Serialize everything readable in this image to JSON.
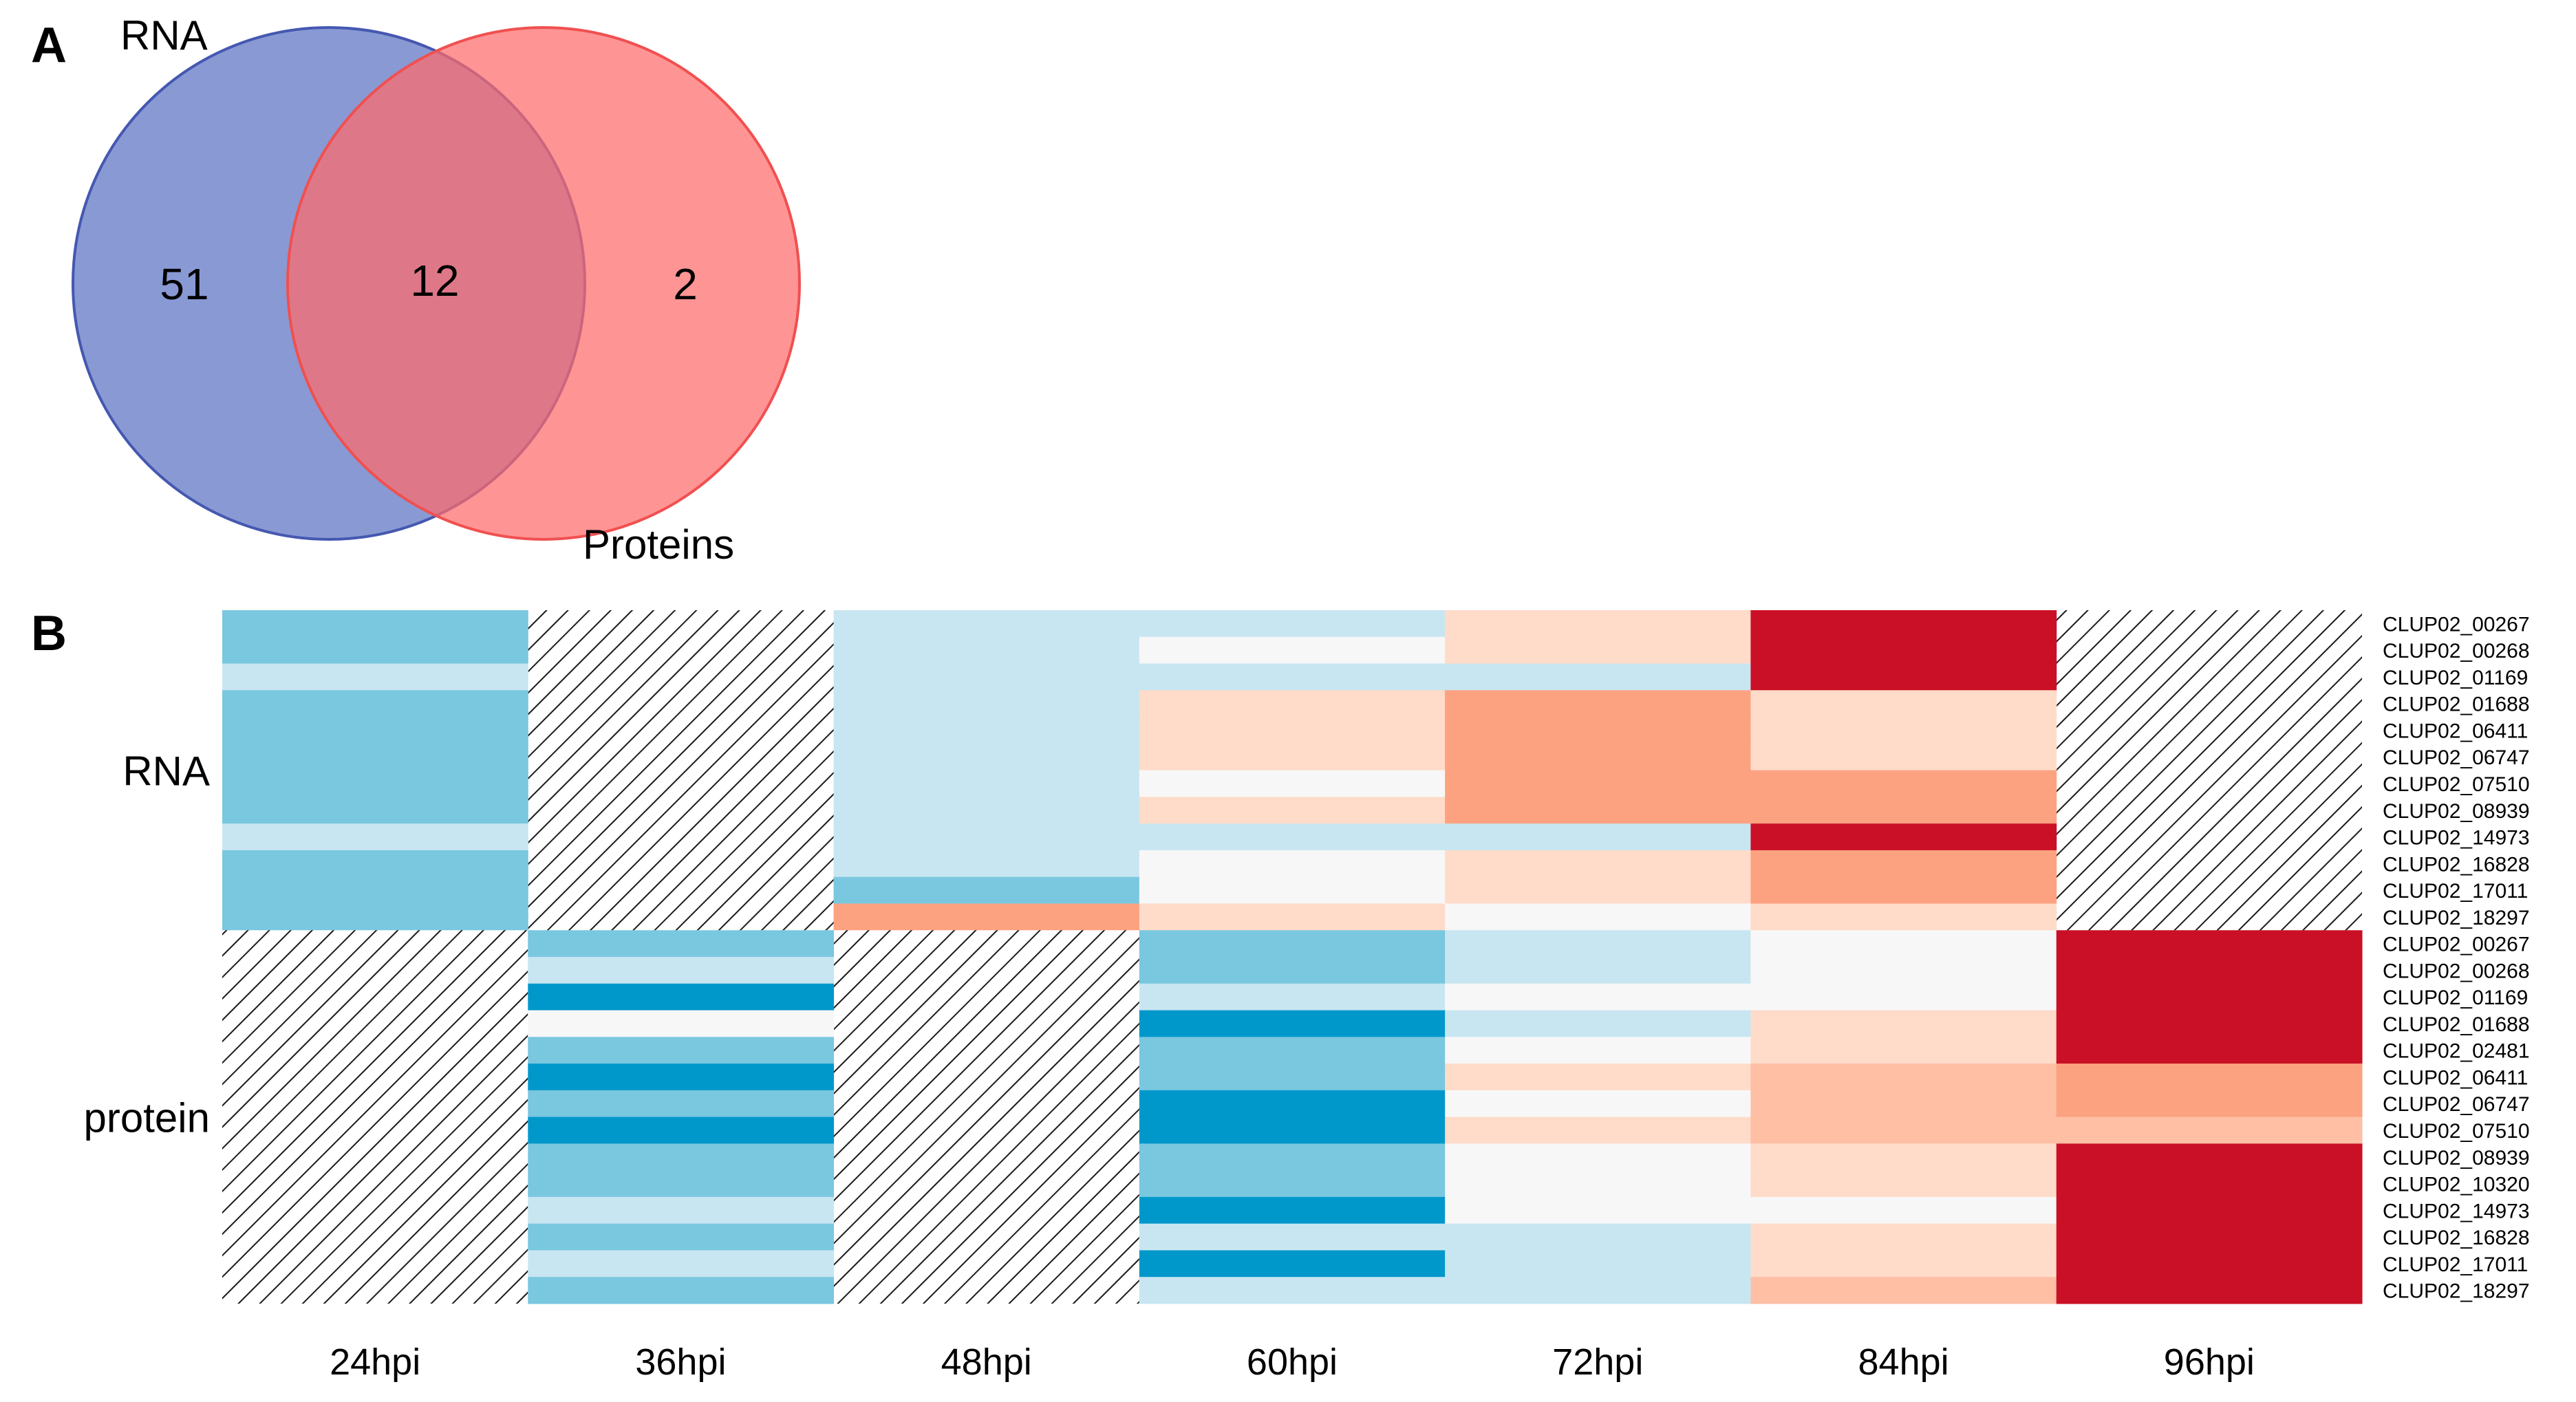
{
  "chart_data": [
    {
      "type": "venn",
      "panel_label": "A",
      "sets": [
        {
          "name": "RNA",
          "color": "#5b72c4"
        },
        {
          "name": "Proteins",
          "color": "#ff6b6b"
        }
      ],
      "regions": {
        "rna_only": "51",
        "both": "12",
        "proteins_only": "2"
      },
      "overlap_color": "#b04a6a"
    },
    {
      "type": "heatmap",
      "panel_label": "B",
      "columns": [
        "24hpi",
        "36hpi",
        "48hpi",
        "60hpi",
        "72hpi",
        "84hpi",
        "96hpi"
      ],
      "scale": {
        "min": -3,
        "max": 3,
        "missing": "NA (hatched)"
      },
      "groups": [
        {
          "name": "RNA",
          "rows": [
            "CLUP02_00267",
            "CLUP02_00268",
            "CLUP02_01169",
            "CLUP02_01688",
            "CLUP02_06411",
            "CLUP02_06747",
            "CLUP02_07510",
            "CLUP02_08939",
            "CLUP02_14973",
            "CLUP02_16828",
            "CLUP02_17011",
            "CLUP02_18297"
          ],
          "values": [
            [
              -2,
              null,
              -1,
              -1,
              1,
              3,
              null
            ],
            [
              -2,
              null,
              -1,
              0,
              1,
              3,
              null
            ],
            [
              -1,
              null,
              -1,
              -1,
              -1,
              3,
              null
            ],
            [
              -2,
              null,
              -1,
              1,
              2,
              1,
              null
            ],
            [
              -2,
              null,
              -1,
              1,
              2,
              1,
              null
            ],
            [
              -2,
              null,
              -1,
              1,
              2,
              1,
              null
            ],
            [
              -2,
              null,
              -1,
              0,
              2,
              2,
              null
            ],
            [
              -2,
              null,
              -1,
              1,
              2,
              2,
              null
            ],
            [
              -1,
              null,
              -1,
              -1,
              -1,
              3,
              null
            ],
            [
              -2,
              null,
              -1,
              0,
              1,
              2,
              null
            ],
            [
              -2,
              null,
              -2,
              0,
              1,
              2,
              null
            ],
            [
              -2,
              null,
              2,
              1,
              0,
              1,
              null
            ]
          ]
        },
        {
          "name": "protein",
          "rows": [
            "CLUP02_00267",
            "CLUP02_00268",
            "CLUP02_01169",
            "CLUP02_01688",
            "CLUP02_02481",
            "CLUP02_06411",
            "CLUP02_06747",
            "CLUP02_07510",
            "CLUP02_08939",
            "CLUP02_10320",
            "CLUP02_14973",
            "CLUP02_16828",
            "CLUP02_17011",
            "CLUP02_18297"
          ],
          "values": [
            [
              null,
              -2,
              null,
              -2,
              -1,
              0,
              3
            ],
            [
              null,
              -1,
              null,
              -2,
              -1,
              0,
              3
            ],
            [
              null,
              -3,
              null,
              -1,
              0,
              0,
              3
            ],
            [
              null,
              0,
              null,
              -3,
              -1,
              1,
              3
            ],
            [
              null,
              -2,
              null,
              -2,
              0,
              1,
              3
            ],
            [
              null,
              -3,
              null,
              -2,
              1,
              1.5,
              2
            ],
            [
              null,
              -2,
              null,
              -3,
              0,
              1.5,
              2
            ],
            [
              null,
              -3,
              null,
              -3,
              1,
              1.5,
              1.5
            ],
            [
              null,
              -2,
              null,
              -2,
              0,
              1,
              3
            ],
            [
              null,
              -2,
              null,
              -2,
              0,
              1,
              3
            ],
            [
              null,
              -1,
              null,
              -3,
              0,
              0,
              3
            ],
            [
              null,
              -2,
              null,
              -1,
              -1,
              1,
              3
            ],
            [
              null,
              -1,
              null,
              -3,
              -1,
              1,
              3
            ],
            [
              null,
              -2,
              null,
              -1,
              -1,
              1.5,
              3
            ]
          ]
        }
      ]
    }
  ]
}
